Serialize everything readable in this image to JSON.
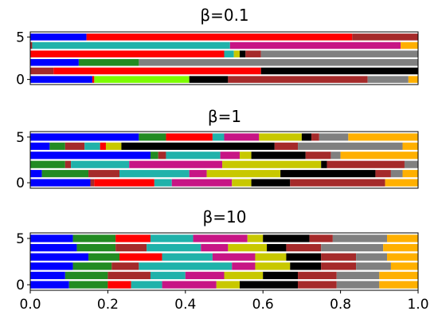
{
  "chart_data": [
    {
      "type": "bar",
      "orientation": "horizontal",
      "stacked": true,
      "title": "β=0.1",
      "xlabel": "",
      "ylabel": "",
      "xlim": [
        0,
        1
      ],
      "ylim": [
        -0.6,
        5.6
      ],
      "yticks": [
        0,
        5
      ],
      "ytick_labels": [
        "0",
        "5"
      ],
      "xticks": [],
      "xtick_labels": [],
      "legend": "none",
      "grid": false,
      "rows": [
        {
          "y": 0,
          "segments": [
            {
              "color": "#0000ff",
              "width": 0.16
            },
            {
              "color": "#ff0000",
              "width": 0.005
            },
            {
              "color": "#7cfc00",
              "width": 0.245
            },
            {
              "color": "#000000",
              "width": 0.1
            },
            {
              "color": "#a52a2a",
              "width": 0.36
            },
            {
              "color": "#808080",
              "width": 0.105
            },
            {
              "color": "#ffb000",
              "width": 0.025
            }
          ]
        },
        {
          "y": 1,
          "segments": [
            {
              "color": "#a52a2a",
              "width": 0.06
            },
            {
              "color": "#ff0000",
              "width": 0.535
            },
            {
              "color": "#000000",
              "width": 0.405
            }
          ]
        },
        {
          "y": 2,
          "segments": [
            {
              "color": "#0000ff",
              "width": 0.125
            },
            {
              "color": "#228b22",
              "width": 0.155
            },
            {
              "color": "#808080",
              "width": 0.72
            }
          ]
        },
        {
          "y": 3,
          "segments": [
            {
              "color": "#ff0000",
              "width": 0.5
            },
            {
              "color": "#20b2aa",
              "width": 0.025
            },
            {
              "color": "#c8c800",
              "width": 0.015
            },
            {
              "color": "#000000",
              "width": 0.015
            },
            {
              "color": "#a52a2a",
              "width": 0.04
            },
            {
              "color": "#808080",
              "width": 0.405
            }
          ]
        },
        {
          "y": 4,
          "segments": [
            {
              "color": "#a52a2a",
              "width": 0.005
            },
            {
              "color": "#20b2aa",
              "width": 0.51
            },
            {
              "color": "#c71585",
              "width": 0.44
            },
            {
              "color": "#ffb000",
              "width": 0.045
            }
          ]
        },
        {
          "y": 5,
          "segments": [
            {
              "color": "#0000ff",
              "width": 0.145
            },
            {
              "color": "#ff0000",
              "width": 0.685
            },
            {
              "color": "#a52a2a",
              "width": 0.17
            }
          ]
        }
      ]
    },
    {
      "type": "bar",
      "orientation": "horizontal",
      "stacked": true,
      "title": "β=1",
      "xlabel": "",
      "ylabel": "",
      "xlim": [
        0,
        1
      ],
      "ylim": [
        -0.6,
        5.6
      ],
      "yticks": [
        0,
        5
      ],
      "ytick_labels": [
        "0",
        "5"
      ],
      "xticks": [],
      "xtick_labels": [],
      "legend": "none",
      "grid": false,
      "rows": [
        {
          "y": 0,
          "segments": [
            {
              "color": "#0000ff",
              "width": 0.155
            },
            {
              "color": "#a52a2a",
              "width": 0.01
            },
            {
              "color": "#ff0000",
              "width": 0.155
            },
            {
              "color": "#20b2aa",
              "width": 0.045
            },
            {
              "color": "#c71585",
              "width": 0.155
            },
            {
              "color": "#c8c800",
              "width": 0.05
            },
            {
              "color": "#000000",
              "width": 0.1
            },
            {
              "color": "#a52a2a",
              "width": 0.245
            },
            {
              "color": "#ffb000",
              "width": 0.085
            }
          ]
        },
        {
          "y": 1,
          "segments": [
            {
              "color": "#0000ff",
              "width": 0.03
            },
            {
              "color": "#228b22",
              "width": 0.12
            },
            {
              "color": "#a52a2a",
              "width": 0.08
            },
            {
              "color": "#20b2aa",
              "width": 0.18
            },
            {
              "color": "#c71585",
              "width": 0.045
            },
            {
              "color": "#c8c800",
              "width": 0.19
            },
            {
              "color": "#000000",
              "width": 0.245
            },
            {
              "color": "#a52a2a",
              "width": 0.04
            },
            {
              "color": "#808080",
              "width": 0.03
            },
            {
              "color": "#ffb000",
              "width": 0.04
            }
          ]
        },
        {
          "y": 2,
          "segments": [
            {
              "color": "#228b22",
              "width": 0.09
            },
            {
              "color": "#a52a2a",
              "width": 0.015
            },
            {
              "color": "#20b2aa",
              "width": 0.15
            },
            {
              "color": "#c71585",
              "width": 0.24
            },
            {
              "color": "#c8c800",
              "width": 0.255
            },
            {
              "color": "#000000",
              "width": 0.015
            },
            {
              "color": "#a52a2a",
              "width": 0.2
            },
            {
              "color": "#808080",
              "width": 0.035
            }
          ]
        },
        {
          "y": 3,
          "segments": [
            {
              "color": "#0000ff",
              "width": 0.31
            },
            {
              "color": "#228b22",
              "width": 0.02
            },
            {
              "color": "#a52a2a",
              "width": 0.02
            },
            {
              "color": "#20b2aa",
              "width": 0.14
            },
            {
              "color": "#c71585",
              "width": 0.05
            },
            {
              "color": "#c8c800",
              "width": 0.03
            },
            {
              "color": "#000000",
              "width": 0.14
            },
            {
              "color": "#a52a2a",
              "width": 0.065
            },
            {
              "color": "#808080",
              "width": 0.025
            },
            {
              "color": "#ffb000",
              "width": 0.2
            }
          ]
        },
        {
          "y": 4,
          "segments": [
            {
              "color": "#0000ff",
              "width": 0.05
            },
            {
              "color": "#228b22",
              "width": 0.04
            },
            {
              "color": "#a52a2a",
              "width": 0.05
            },
            {
              "color": "#20b2aa",
              "width": 0.04
            },
            {
              "color": "#ff0000",
              "width": 0.015
            },
            {
              "color": "#c8c800",
              "width": 0.04
            },
            {
              "color": "#000000",
              "width": 0.395
            },
            {
              "color": "#a52a2a",
              "width": 0.06
            },
            {
              "color": "#808080",
              "width": 0.27
            },
            {
              "color": "#ffb000",
              "width": 0.04
            }
          ]
        },
        {
          "y": 5,
          "segments": [
            {
              "color": "#0000ff",
              "width": 0.28
            },
            {
              "color": "#228b22",
              "width": 0.07
            },
            {
              "color": "#ff0000",
              "width": 0.12
            },
            {
              "color": "#20b2aa",
              "width": 0.03
            },
            {
              "color": "#c71585",
              "width": 0.09
            },
            {
              "color": "#c8c800",
              "width": 0.11
            },
            {
              "color": "#000000",
              "width": 0.025
            },
            {
              "color": "#a52a2a",
              "width": 0.02
            },
            {
              "color": "#808080",
              "width": 0.075
            },
            {
              "color": "#ffb000",
              "width": 0.18
            }
          ]
        }
      ]
    },
    {
      "type": "bar",
      "orientation": "horizontal",
      "stacked": true,
      "title": "β=10",
      "xlabel": "",
      "ylabel": "",
      "xlim": [
        0,
        1
      ],
      "ylim": [
        -0.6,
        5.6
      ],
      "yticks": [
        0,
        5
      ],
      "ytick_labels": [
        "0",
        "5"
      ],
      "xticks": [
        0,
        0.2,
        0.4,
        0.6,
        0.8,
        1.0
      ],
      "xtick_labels": [
        "0.0",
        "0.2",
        "0.4",
        "0.6",
        "0.8",
        "1.0"
      ],
      "legend": "none",
      "grid": false,
      "rows": [
        {
          "y": 0,
          "segments": [
            {
              "color": "#0000ff",
              "width": 0.1
            },
            {
              "color": "#228b22",
              "width": 0.1
            },
            {
              "color": "#ff0000",
              "width": 0.06
            },
            {
              "color": "#20b2aa",
              "width": 0.08
            },
            {
              "color": "#c71585",
              "width": 0.14
            },
            {
              "color": "#c8c800",
              "width": 0.06
            },
            {
              "color": "#000000",
              "width": 0.15
            },
            {
              "color": "#a52a2a",
              "width": 0.1
            },
            {
              "color": "#808080",
              "width": 0.11
            },
            {
              "color": "#ffb000",
              "width": 0.1
            }
          ]
        },
        {
          "y": 1,
          "segments": [
            {
              "color": "#0000ff",
              "width": 0.09
            },
            {
              "color": "#228b22",
              "width": 0.11
            },
            {
              "color": "#a52a2a",
              "width": 0.11
            },
            {
              "color": "#20b2aa",
              "width": 0.09
            },
            {
              "color": "#c71585",
              "width": 0.1
            },
            {
              "color": "#c8c800",
              "width": 0.1
            },
            {
              "color": "#000000",
              "width": 0.09
            },
            {
              "color": "#a52a2a",
              "width": 0.1
            },
            {
              "color": "#808080",
              "width": 0.11
            },
            {
              "color": "#ffb000",
              "width": 0.1
            }
          ]
        },
        {
          "y": 2,
          "segments": [
            {
              "color": "#0000ff",
              "width": 0.11
            },
            {
              "color": "#228b22",
              "width": 0.1
            },
            {
              "color": "#a52a2a",
              "width": 0.07
            },
            {
              "color": "#20b2aa",
              "width": 0.24
            },
            {
              "color": "#c71585",
              "width": 0.06
            },
            {
              "color": "#c8c800",
              "width": 0.09
            },
            {
              "color": "#000000",
              "width": 0.08
            },
            {
              "color": "#a52a2a",
              "width": 0.09
            },
            {
              "color": "#808080",
              "width": 0.09
            },
            {
              "color": "#ffb000",
              "width": 0.07
            }
          ]
        },
        {
          "y": 3,
          "segments": [
            {
              "color": "#0000ff",
              "width": 0.15
            },
            {
              "color": "#228b22",
              "width": 0.08
            },
            {
              "color": "#ff0000",
              "width": 0.11
            },
            {
              "color": "#20b2aa",
              "width": 0.13
            },
            {
              "color": "#c71585",
              "width": 0.11
            },
            {
              "color": "#c8c800",
              "width": 0.08
            },
            {
              "color": "#000000",
              "width": 0.09
            },
            {
              "color": "#a52a2a",
              "width": 0.09
            },
            {
              "color": "#808080",
              "width": 0.08
            },
            {
              "color": "#ffb000",
              "width": 0.08
            }
          ]
        },
        {
          "y": 4,
          "segments": [
            {
              "color": "#0000ff",
              "width": 0.12
            },
            {
              "color": "#228b22",
              "width": 0.1
            },
            {
              "color": "#a52a2a",
              "width": 0.08
            },
            {
              "color": "#20b2aa",
              "width": 0.14
            },
            {
              "color": "#c71585",
              "width": 0.07
            },
            {
              "color": "#c8c800",
              "width": 0.1
            },
            {
              "color": "#000000",
              "width": 0.05
            },
            {
              "color": "#a52a2a",
              "width": 0.09
            },
            {
              "color": "#808080",
              "width": 0.16
            },
            {
              "color": "#ffb000",
              "width": 0.09
            }
          ]
        },
        {
          "y": 5,
          "segments": [
            {
              "color": "#0000ff",
              "width": 0.11
            },
            {
              "color": "#228b22",
              "width": 0.11
            },
            {
              "color": "#ff0000",
              "width": 0.09
            },
            {
              "color": "#20b2aa",
              "width": 0.11
            },
            {
              "color": "#c71585",
              "width": 0.14
            },
            {
              "color": "#c8c800",
              "width": 0.04
            },
            {
              "color": "#000000",
              "width": 0.12
            },
            {
              "color": "#a52a2a",
              "width": 0.06
            },
            {
              "color": "#808080",
              "width": 0.14
            },
            {
              "color": "#ffb000",
              "width": 0.08
            }
          ]
        }
      ]
    }
  ]
}
